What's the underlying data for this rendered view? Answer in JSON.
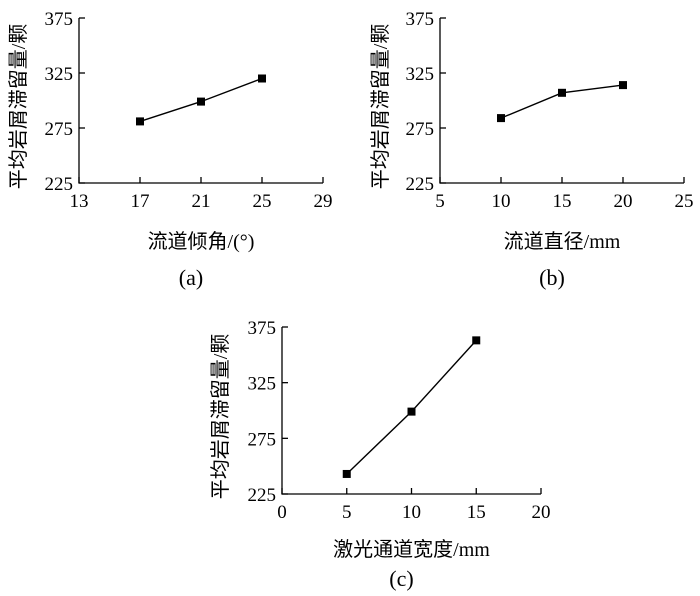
{
  "colors": {
    "line": "#000000",
    "marker": "#000000",
    "background": "#ffffff"
  },
  "chart_data": [
    {
      "type": "line",
      "panel_label": "(a)",
      "xlabel": "流道倾角/(°)",
      "ylabel": "平均岩屑滞留量/颗",
      "xlim": [
        13,
        29
      ],
      "ylim": [
        225,
        375
      ],
      "xticks": [
        "13",
        "17",
        "21",
        "25",
        "29"
      ],
      "yticks": [
        "225",
        "275",
        "325",
        "375"
      ],
      "grid": false,
      "marker": "square",
      "series": [
        {
          "x": [
            17,
            21,
            25
          ],
          "y": [
            281,
            299,
            320
          ]
        }
      ]
    },
    {
      "type": "line",
      "panel_label": "(b)",
      "xlabel": "流道直径/mm",
      "ylabel": "平均岩屑滞留量/颗",
      "xlim": [
        5,
        25
      ],
      "ylim": [
        225,
        375
      ],
      "xticks": [
        "5",
        "10",
        "15",
        "20",
        "25"
      ],
      "yticks": [
        "225",
        "275",
        "325",
        "375"
      ],
      "grid": false,
      "marker": "square",
      "series": [
        {
          "x": [
            10,
            15,
            20
          ],
          "y": [
            284,
            307,
            314
          ]
        }
      ]
    },
    {
      "type": "line",
      "panel_label": "(c)",
      "xlabel": "激光通道宽度/mm",
      "ylabel": "平均岩屑滞留量/颗",
      "xlim": [
        0,
        20
      ],
      "ylim": [
        225,
        375
      ],
      "xticks": [
        "0",
        "5",
        "10",
        "15",
        "20"
      ],
      "yticks": [
        "225",
        "275",
        "325",
        "375"
      ],
      "grid": false,
      "marker": "square",
      "series": [
        {
          "x": [
            5,
            10,
            15
          ],
          "y": [
            243,
            299,
            363
          ]
        }
      ]
    }
  ]
}
